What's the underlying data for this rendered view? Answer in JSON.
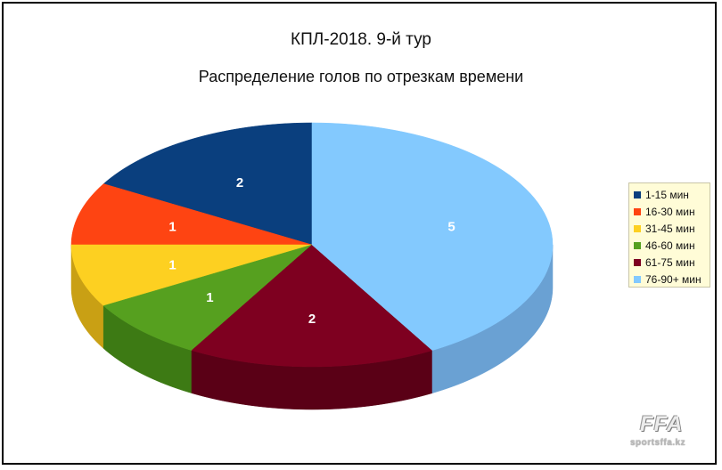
{
  "chart_data": {
    "type": "pie",
    "title": "КПЛ-2018. 9-й тур",
    "subtitle": "Распределение голов по отрезкам времени",
    "categories": [
      "1-15 мин",
      "16-30 мин",
      "31-45 мин",
      "46-60 мин",
      "61-75 мин",
      "76-90+ мин"
    ],
    "values": [
      2,
      1,
      1,
      1,
      2,
      5
    ],
    "colors": [
      "#0a3f7e",
      "#fe4412",
      "#fdd021",
      "#56a01f",
      "#7e0020",
      "#83c9fe"
    ],
    "side_colors": [
      "#062a57",
      "#b53108",
      "#c9a014",
      "#3d7a14",
      "#5a0016",
      "#6aa1d3"
    ],
    "legend_position": "right"
  },
  "watermark": {
    "logo": "FFA",
    "site": "sportsffa.kz"
  }
}
